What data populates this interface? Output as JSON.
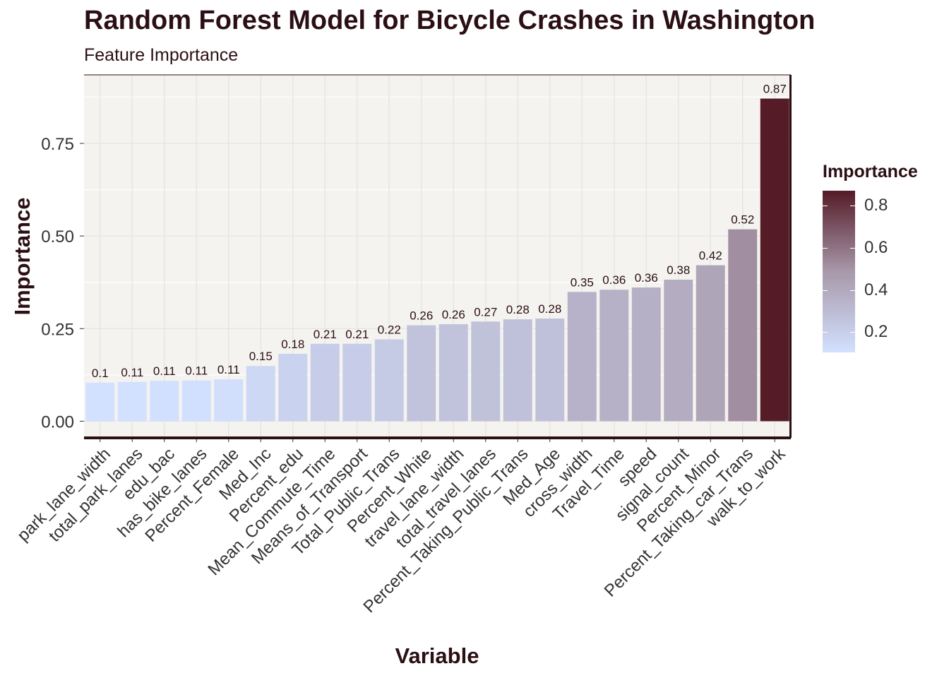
{
  "chart_data": {
    "type": "bar",
    "title": "Random Forest Model for Bicycle Crashes in Washington",
    "subtitle": "Feature Importance",
    "xlabel": "Variable",
    "ylabel": "Importance",
    "categories": [
      "park_lane_width",
      "total_park_lanes",
      "edu_bac",
      "has_bike_lanes",
      "Percent_Female",
      "Med_Inc",
      "Percent_edu",
      "Mean_Commute_Time",
      "Means_of_Transport",
      "Total_Public_Trans",
      "Percent_White",
      "travel_lane_width",
      "total_travel_lanes",
      "Percent_Taking_Public_Trans",
      "Med_Age",
      "cross_width",
      "Travel_Time",
      "speed",
      "signal_count",
      "Percent_Minor",
      "Percent_Taking_car_Trans",
      "walk_to_work"
    ],
    "values": [
      0.104,
      0.106,
      0.109,
      0.11,
      0.113,
      0.149,
      0.182,
      0.209,
      0.209,
      0.221,
      0.259,
      0.262,
      0.269,
      0.275,
      0.277,
      0.349,
      0.355,
      0.361,
      0.382,
      0.421,
      0.518,
      0.871
    ],
    "data_labels": [
      "0.1",
      "0.11",
      "0.11",
      "0.11",
      "0.11",
      "0.15",
      "0.18",
      "0.21",
      "0.21",
      "0.22",
      "0.26",
      "0.26",
      "0.27",
      "0.28",
      "0.28",
      "0.35",
      "0.36",
      "0.36",
      "0.38",
      "0.42",
      "0.52",
      "0.87"
    ],
    "ylim": [
      -0.045,
      0.935
    ],
    "yticks": [
      0.0,
      0.25,
      0.5,
      0.75
    ],
    "ytick_labels": [
      "0.00",
      "0.25",
      "0.50",
      "0.75"
    ],
    "grid": true,
    "legend": {
      "title": "Importance",
      "position": "right",
      "type": "gradient",
      "range": [
        0.104,
        0.871
      ],
      "ticks": [
        0.2,
        0.4,
        0.6,
        0.8
      ],
      "tick_labels": [
        "0.2",
        "0.4",
        "0.6",
        "0.8"
      ]
    },
    "colors": {
      "low": "#d2e1ff",
      "mid": "#a898aa",
      "high": "#551b27",
      "panel_bg": "#f4f3f0",
      "text": "#2b0f14"
    }
  }
}
